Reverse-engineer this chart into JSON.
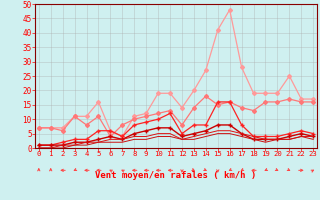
{
  "x": [
    0,
    1,
    2,
    3,
    4,
    5,
    6,
    7,
    8,
    9,
    10,
    11,
    12,
    13,
    14,
    15,
    16,
    17,
    18,
    19,
    20,
    21,
    22,
    23
  ],
  "series": [
    {
      "name": "rafales_max",
      "color": "#ff9999",
      "linewidth": 0.9,
      "markersize": 2.0,
      "marker": "D",
      "values": [
        7,
        7,
        7,
        11,
        11,
        16,
        6,
        4,
        11,
        12,
        19,
        19,
        14,
        20,
        27,
        41,
        48,
        28,
        19,
        19,
        19,
        25,
        17,
        17
      ]
    },
    {
      "name": "rafales_mean",
      "color": "#ff7777",
      "linewidth": 0.9,
      "markersize": 2.0,
      "marker": "D",
      "values": [
        7,
        7,
        6,
        11,
        8,
        11,
        4,
        8,
        10,
        11,
        12,
        13,
        8,
        14,
        18,
        15,
        16,
        14,
        13,
        16,
        16,
        17,
        16,
        16
      ]
    },
    {
      "name": "vent_max",
      "color": "#ff2222",
      "linewidth": 0.9,
      "markersize": 2.5,
      "marker": "+",
      "values": [
        1,
        1,
        2,
        3,
        3,
        6,
        6,
        4,
        8,
        9,
        10,
        12,
        5,
        8,
        8,
        16,
        16,
        8,
        4,
        4,
        4,
        5,
        6,
        5
      ]
    },
    {
      "name": "vent_mean",
      "color": "#cc0000",
      "linewidth": 1.0,
      "markersize": 2.5,
      "marker": "+",
      "values": [
        1,
        1,
        1,
        2,
        2,
        3,
        4,
        3,
        5,
        6,
        7,
        7,
        4,
        5,
        6,
        8,
        8,
        5,
        3,
        3,
        3,
        4,
        5,
        4
      ]
    },
    {
      "name": "vent_line1",
      "color": "#dd1111",
      "linewidth": 0.7,
      "markersize": 0,
      "marker": null,
      "values": [
        0,
        0,
        1,
        1,
        2,
        2,
        3,
        3,
        4,
        4,
        5,
        5,
        3,
        4,
        5,
        6,
        6,
        5,
        4,
        3,
        3,
        3,
        4,
        4
      ]
    },
    {
      "name": "vent_line2",
      "color": "#cc1111",
      "linewidth": 0.7,
      "markersize": 0,
      "marker": null,
      "values": [
        0,
        0,
        0,
        1,
        1,
        2,
        2,
        2,
        3,
        3,
        4,
        4,
        3,
        3,
        4,
        5,
        5,
        4,
        3,
        2,
        3,
        3,
        4,
        3
      ]
    }
  ],
  "arrow_angles": [
    180,
    180,
    270,
    315,
    270,
    270,
    225,
    225,
    270,
    270,
    270,
    270,
    0,
    45,
    45,
    0,
    315,
    315,
    270,
    315,
    45,
    45,
    90,
    135
  ],
  "xlabel": "Vent moyen/en rafales ( km/h )",
  "xlim": [
    0,
    23
  ],
  "ylim": [
    0,
    50
  ],
  "yticks": [
    0,
    5,
    10,
    15,
    20,
    25,
    30,
    35,
    40,
    45,
    50
  ],
  "xticks": [
    0,
    1,
    2,
    3,
    4,
    5,
    6,
    7,
    8,
    9,
    10,
    11,
    12,
    13,
    14,
    15,
    16,
    17,
    18,
    19,
    20,
    21,
    22,
    23
  ],
  "background_color": "#cff0f0",
  "grid_color": "#aaaaaa",
  "tick_color": "#ff0000",
  "xlabel_color": "#ff0000",
  "arrow_color": "#ff4444"
}
